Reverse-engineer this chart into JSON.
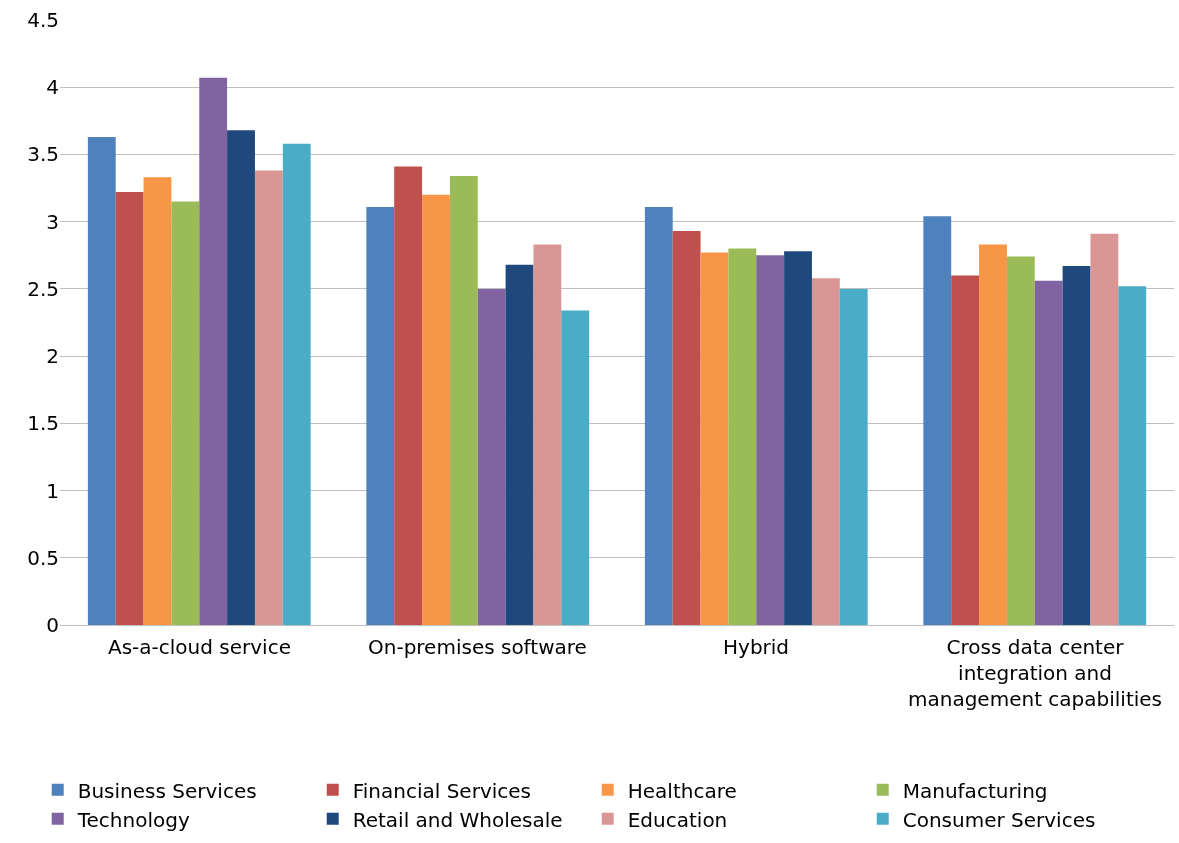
{
  "chart_data": {
    "type": "bar",
    "categories": [
      "As-a-cloud service",
      "On-premises software",
      "Hybrid",
      "Cross data center integration and management capabilities"
    ],
    "series": [
      {
        "name": "Business Services",
        "color": "#4f81bd",
        "values": [
          3.63,
          3.11,
          3.11,
          3.04
        ]
      },
      {
        "name": "Financial Services",
        "color": "#c0504d",
        "values": [
          3.22,
          3.41,
          2.93,
          2.6
        ]
      },
      {
        "name": "Healthcare",
        "color": "#f79646",
        "values": [
          3.33,
          3.2,
          2.77,
          2.83
        ]
      },
      {
        "name": "Manufacturing",
        "color": "#9bbb59",
        "values": [
          3.15,
          3.34,
          2.8,
          2.74
        ]
      },
      {
        "name": "Technology",
        "color": "#8064a2",
        "values": [
          4.07,
          2.5,
          2.75,
          2.56
        ]
      },
      {
        "name": "Retail and Wholesale",
        "color": "#1f497d",
        "values": [
          3.68,
          2.68,
          2.78,
          2.67
        ]
      },
      {
        "name": "Education",
        "color": "#d99694",
        "values": [
          3.38,
          2.83,
          2.58,
          2.91
        ]
      },
      {
        "name": "Consumer Services",
        "color": "#4bacc6",
        "values": [
          3.58,
          2.34,
          2.5,
          2.52
        ]
      }
    ],
    "ylim": [
      0,
      4.5
    ],
    "yticks": [
      0,
      0.5,
      1,
      1.5,
      2,
      2.5,
      3,
      3.5,
      4,
      4.5
    ],
    "grid": "y",
    "legend": "bottom"
  }
}
